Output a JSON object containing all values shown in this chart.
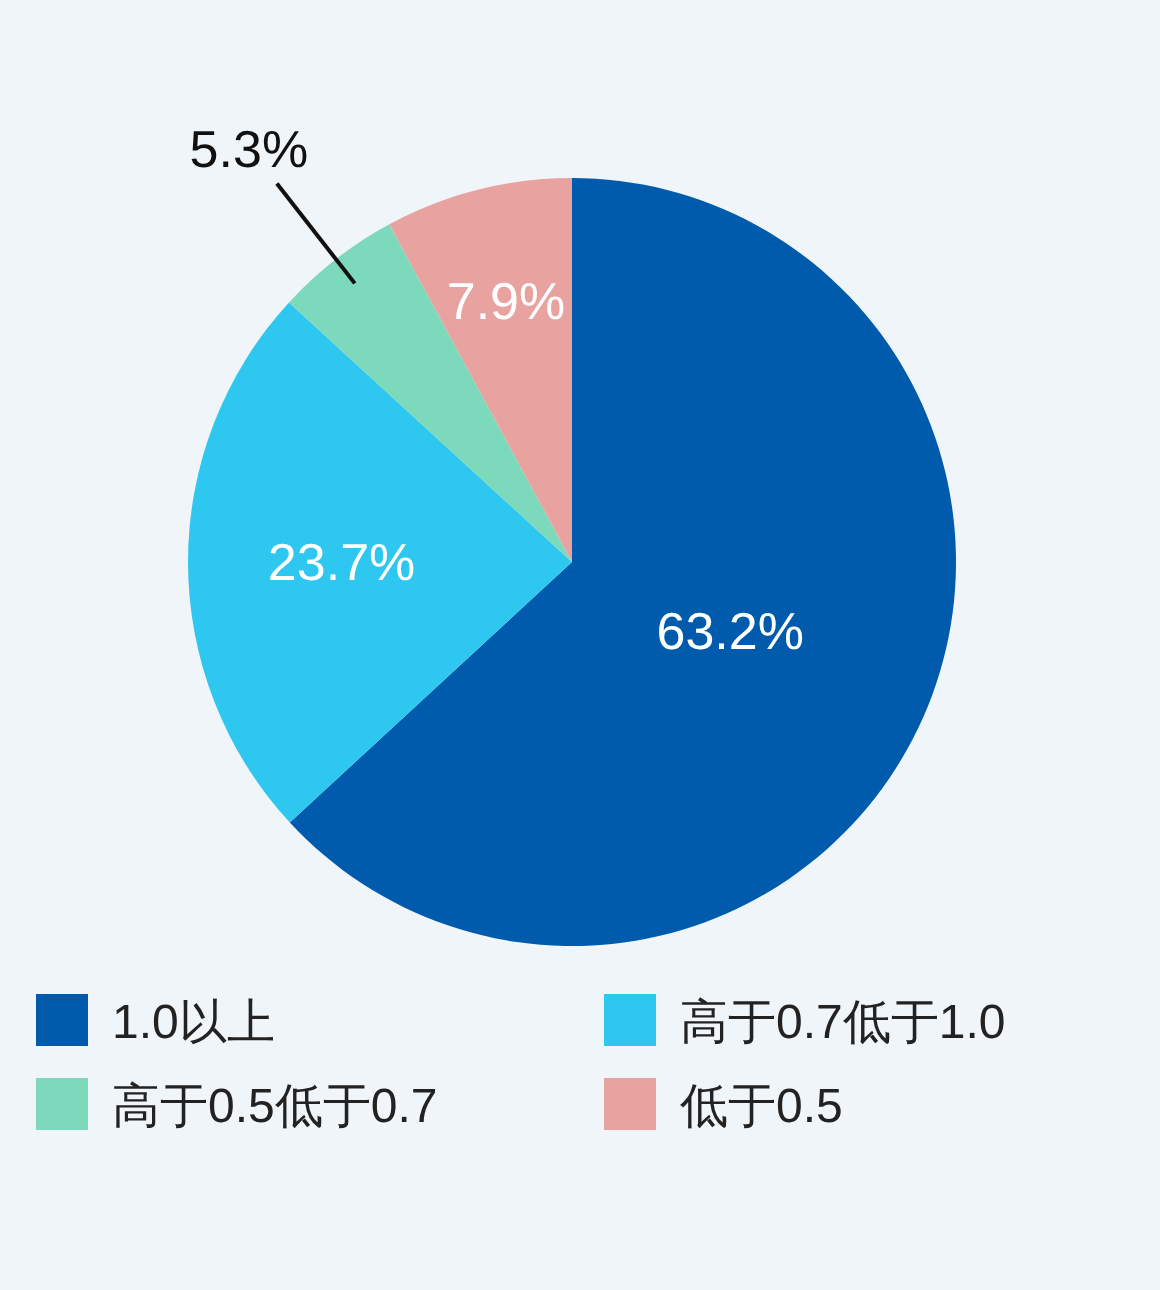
{
  "chart_data": {
    "type": "pie",
    "categories": [
      "1.0以上",
      "高于0.7低于1.0",
      "高于0.5低于0.7",
      "低于0.5"
    ],
    "values": [
      63.2,
      23.7,
      5.3,
      7.9
    ],
    "colors": [
      "#005bac",
      "#2ec7f0",
      "#7dd9bb",
      "#e8a2a0"
    ],
    "value_labels": [
      "63.2%",
      "23.7%",
      "5.3%",
      "7.9%"
    ],
    "legend": "bottom"
  }
}
